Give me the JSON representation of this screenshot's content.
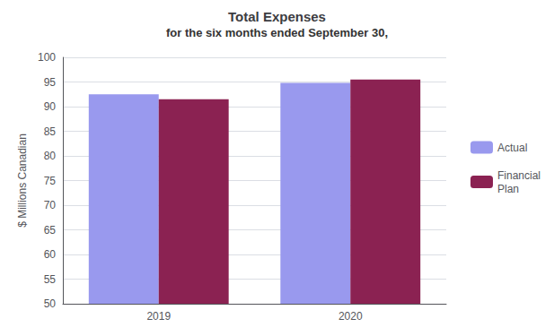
{
  "chart_data": {
    "type": "bar",
    "title": "Total Expenses",
    "subtitle": "for the six months ended September 30,",
    "y_label": "$ Millions Canadian",
    "categories": [
      "2019",
      "2020"
    ],
    "series": [
      {
        "name": "Actual",
        "color": "#9999EE",
        "values": [
          92.5,
          94.8
        ]
      },
      {
        "name": "Financial\nPlan",
        "color": "#8B2252",
        "values": [
          91.5,
          95.5
        ]
      }
    ],
    "ylim": [
      50,
      100
    ],
    "yticks": [
      50,
      55,
      60,
      65,
      70,
      75,
      80,
      85,
      90,
      95,
      100
    ],
    "grid": true,
    "legend": "right"
  }
}
